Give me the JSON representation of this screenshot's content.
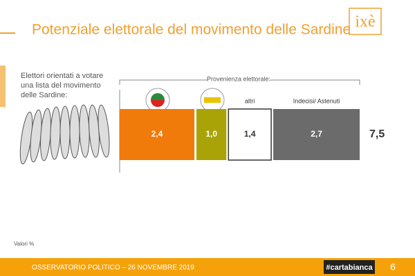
{
  "chart_data": {
    "type": "stacked-bar",
    "title": "Potenziale elettorale del movimento delle Sardine",
    "logo": "ixè",
    "subtitle": "Elettori orientati a votare una lista del movimento delle Sardine:",
    "group_label": "Provenienza elettorale:",
    "categories": [
      null,
      null,
      "altri",
      "Indecisi/ Astenuti"
    ],
    "values": [
      2.4,
      1.0,
      1.4,
      2.7
    ],
    "value_labels": [
      "2,4",
      "1,0",
      "1,4",
      "2,7"
    ],
    "colors": [
      "#f07a0a",
      "#a9a307",
      "#ffffff",
      "#6b6b6b"
    ],
    "total": {
      "value": 7.5,
      "label": "7,5"
    },
    "note": "Valori %",
    "footer": "OSSERVATORIO POLITICO – 26 NOVEMBRE 2019",
    "brand": "#cartabianca",
    "page": "6"
  }
}
